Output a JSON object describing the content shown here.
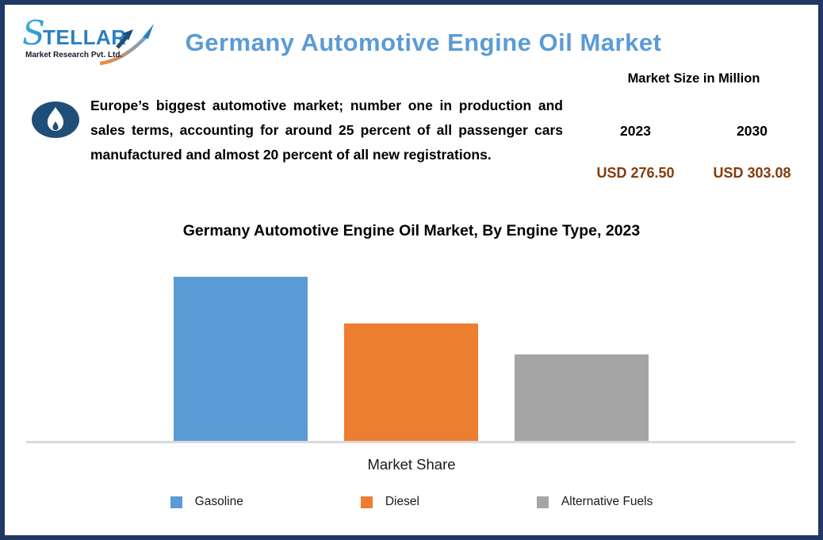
{
  "page": {
    "border_color": "#1F3864",
    "background_color": "#FFFFFF"
  },
  "logo": {
    "brand": "TELLAR",
    "brand_initial": "S",
    "tagline": "Market Research Pvt. Ltd.",
    "brand_color": "#2B7FC3",
    "arrow_gradient": [
      "#F08A3C",
      "#5FA8DC"
    ]
  },
  "header": {
    "title": "Germany Automotive Engine Oil Market",
    "title_color": "#5B9BD5"
  },
  "summary": {
    "icon": "oil-flame-icon",
    "icon_color": "#1F4E79",
    "text": "Europe’s biggest automotive market; number one in production and sales terms, accounting for around 25 percent of all passenger cars manufactured and almost 20 percent of all new registrations."
  },
  "market_size": {
    "heading": "Market Size in Million",
    "value_color": "#843C0C",
    "columns": [
      {
        "year": "2023",
        "value": "USD 276.50"
      },
      {
        "year": "2030",
        "value": "USD 303.08"
      }
    ]
  },
  "chart_data": {
    "type": "bar",
    "title": "Germany Automotive Engine Oil Market, By Engine Type, 2023",
    "categories": [
      "Gasoline",
      "Diesel",
      "Alternative Fuels"
    ],
    "values": [
      44.7,
      31.8,
      23.4
    ],
    "values_note": "estimated relative shares; y-axis not labeled in source",
    "xlabel": "Market Share",
    "ylabel": "",
    "ylim": [
      0,
      50
    ],
    "grid": false,
    "y_axis_visible": false,
    "legend_position": "bottom",
    "colors": [
      "#5B9BD5",
      "#ED7D31",
      "#A5A5A5"
    ],
    "axis_line_color": "#D9D9D9"
  }
}
